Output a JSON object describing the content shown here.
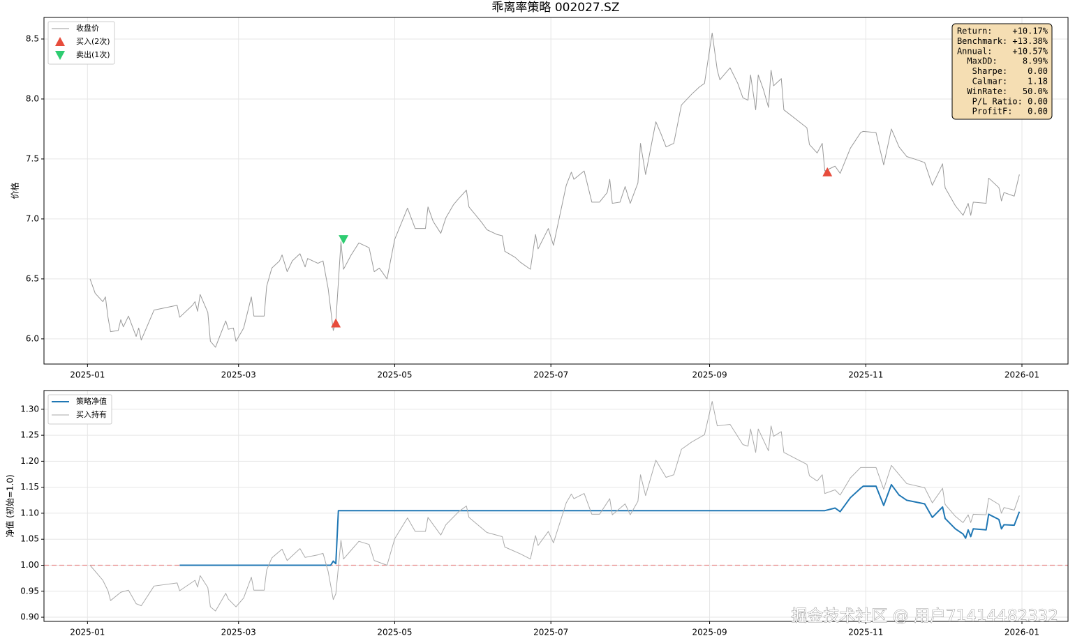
{
  "watermark": "掘金技术社区 @ 用户71414482332",
  "chart_data": [
    {
      "type": "line",
      "title": "乖离率策略  002027.SZ",
      "ylabel": "价格",
      "grid": true,
      "legend": "upper left",
      "xlim": [
        -17,
        383
      ],
      "ylim": [
        5.79,
        8.68
      ],
      "xticks": [
        {
          "value": 0,
          "label": "2025-01"
        },
        {
          "value": 59,
          "label": "2025-03"
        },
        {
          "value": 120,
          "label": "2025-05"
        },
        {
          "value": 181,
          "label": "2025-07"
        },
        {
          "value": 243,
          "label": "2025-09"
        },
        {
          "value": 304,
          "label": "2025-11"
        },
        {
          "value": 365,
          "label": "2026-01"
        }
      ],
      "yticks": [
        {
          "value": 6,
          "label": "6.0"
        },
        6.5,
        {
          "value": 7,
          "label": "7.0"
        },
        7.5,
        {
          "value": 8,
          "label": "8.0"
        },
        8.5
      ],
      "stats_box": [
        "Return:    +10.17%",
        "Benchmark: +13.38%",
        "Annual:    +10.57%",
        "MaxDD:     8.99%",
        "Sharpe:    0.00",
        "Calmar:    1.18",
        "WinRate:   50.0%",
        "P/L Ratio: 0.00",
        "ProfitF:   0.00"
      ],
      "series": [
        {
          "name": "收盘价",
          "color": "#999999",
          "linewidth": 1,
          "x": [
            1,
            3,
            6,
            7,
            8,
            9,
            12,
            13,
            14,
            16,
            19,
            20,
            21,
            26,
            35,
            36,
            41,
            42,
            43,
            44,
            47,
            48,
            50,
            54,
            55,
            57,
            58,
            61,
            64,
            65,
            69,
            70,
            72,
            75,
            76,
            78,
            80,
            83,
            85,
            86,
            90,
            92,
            94,
            96,
            97,
            99,
            100,
            103,
            106,
            110,
            112,
            114,
            117,
            120,
            125,
            128,
            132,
            133,
            135,
            138,
            140,
            143,
            145,
            148,
            149,
            154,
            156,
            160,
            162,
            163,
            167,
            169,
            173,
            175,
            176,
            180,
            182,
            187,
            189,
            190,
            194,
            197,
            200,
            203,
            204,
            205,
            208,
            210,
            212,
            215,
            216,
            218,
            222,
            224,
            226,
            229,
            232,
            236,
            239,
            241,
            244,
            246,
            247,
            251,
            254,
            256,
            258,
            259,
            261,
            262,
            264,
            266,
            267,
            268,
            271,
            272,
            281,
            282,
            285,
            287,
            288,
            292,
            294,
            298,
            302,
            303,
            308,
            311,
            314,
            317,
            320,
            323,
            327,
            330,
            334,
            335,
            339,
            342,
            344,
            345,
            346,
            351,
            352,
            356,
            357,
            358,
            362,
            364
          ],
          "values": [
            6.5,
            6.38,
            6.31,
            6.35,
            6.18,
            6.06,
            6.07,
            6.16,
            6.1,
            6.19,
            6.02,
            6.09,
            5.99,
            6.24,
            6.28,
            6.18,
            6.28,
            6.31,
            6.23,
            6.37,
            6.22,
            5.98,
            5.93,
            6.15,
            6.08,
            6.09,
            5.98,
            6.09,
            6.35,
            6.19,
            6.19,
            6.44,
            6.59,
            6.65,
            6.7,
            6.56,
            6.65,
            6.71,
            6.6,
            6.67,
            6.63,
            6.65,
            6.42,
            6.07,
            6.14,
            6.81,
            6.58,
            6.7,
            6.8,
            6.76,
            6.56,
            6.59,
            6.5,
            6.83,
            7.09,
            6.92,
            6.92,
            7.1,
            6.98,
            6.88,
            7.01,
            7.12,
            7.17,
            7.24,
            7.1,
            6.97,
            6.91,
            6.87,
            6.86,
            6.73,
            6.68,
            6.64,
            6.58,
            6.87,
            6.75,
            6.92,
            6.78,
            7.28,
            7.39,
            7.33,
            7.4,
            7.14,
            7.14,
            7.22,
            7.33,
            7.13,
            7.14,
            7.27,
            7.13,
            7.3,
            7.63,
            7.37,
            7.81,
            7.71,
            7.6,
            7.63,
            7.95,
            8.04,
            8.1,
            8.13,
            8.55,
            8.24,
            8.16,
            8.26,
            8.13,
            8.01,
            7.99,
            8.2,
            7.91,
            8.2,
            8.08,
            7.93,
            8.24,
            8.11,
            8.17,
            7.91,
            7.76,
            7.62,
            7.55,
            7.63,
            7.4,
            7.44,
            7.38,
            7.59,
            7.72,
            7.73,
            7.72,
            7.45,
            7.75,
            7.6,
            7.52,
            7.5,
            7.47,
            7.28,
            7.46,
            7.26,
            7.11,
            7.03,
            7.13,
            7.03,
            7.14,
            7.13,
            7.34,
            7.26,
            7.15,
            7.22,
            7.19,
            7.37
          ]
        },
        {
          "name": "买入(2次)",
          "marker": "triangle-up",
          "color": "#e74c3c",
          "x": [
            97,
            289
          ],
          "values": [
            6.13,
            7.39
          ]
        },
        {
          "name": "卖出(1次)",
          "marker": "triangle-down",
          "color": "#2ecc71",
          "x": [
            100
          ],
          "values": [
            6.83
          ]
        }
      ]
    },
    {
      "type": "line",
      "ylabel": "净值 (初始=1.0)",
      "grid": true,
      "legend": "upper left",
      "xlim": [
        -17,
        383
      ],
      "ylim": [
        0.892,
        1.336
      ],
      "reference_line": 1.0,
      "reference_color": "#e88a8a",
      "xticks": [
        {
          "value": 0,
          "label": "2025-01"
        },
        {
          "value": 59,
          "label": "2025-03"
        },
        {
          "value": 120,
          "label": "2025-05"
        },
        {
          "value": 181,
          "label": "2025-07"
        },
        {
          "value": 243,
          "label": "2025-09"
        },
        {
          "value": 304,
          "label": "2025-11"
        },
        {
          "value": 365,
          "label": "2026-01"
        }
      ],
      "yticks": [
        {
          "value": 0.9,
          "label": "0.90"
        },
        0.95,
        {
          "value": 1,
          "label": "1.00"
        },
        1.05,
        {
          "value": 1.1,
          "label": "1.10"
        },
        1.15,
        {
          "value": 1.2,
          "label": "1.20"
        },
        1.25,
        {
          "value": 1.3,
          "label": "1.30"
        }
      ],
      "series": [
        {
          "name": "策略净值",
          "color": "#1f77b4",
          "linewidth": 2,
          "x": [
            36,
            95,
            96,
            97,
            98,
            99,
            288,
            292,
            294,
            298,
            302,
            303,
            308,
            311,
            314,
            317,
            320,
            323,
            327,
            330,
            334,
            335,
            339,
            342,
            343,
            344,
            345,
            346,
            351,
            352,
            356,
            357,
            358,
            362,
            364
          ],
          "values": [
            1.0,
            1.0,
            1.008,
            1.003,
            1.105,
            1.105,
            1.105,
            1.11,
            1.103,
            1.13,
            1.148,
            1.152,
            1.152,
            1.115,
            1.155,
            1.135,
            1.125,
            1.122,
            1.118,
            1.092,
            1.112,
            1.09,
            1.07,
            1.06,
            1.052,
            1.068,
            1.055,
            1.07,
            1.068,
            1.098,
            1.088,
            1.07,
            1.078,
            1.077,
            1.103
          ]
        },
        {
          "name": "买入持有",
          "color": "#aaaaaa",
          "linewidth": 1,
          "x": [
            1,
            6,
            8,
            9,
            13,
            16,
            19,
            21,
            26,
            35,
            36,
            42,
            43,
            44,
            47,
            48,
            50,
            54,
            55,
            58,
            61,
            64,
            65,
            69,
            70,
            72,
            76,
            78,
            83,
            85,
            90,
            92,
            94,
            96,
            97,
            99,
            100,
            106,
            110,
            112,
            117,
            120,
            125,
            128,
            132,
            133,
            138,
            140,
            145,
            148,
            149,
            156,
            162,
            163,
            169,
            173,
            175,
            176,
            180,
            182,
            187,
            189,
            190,
            194,
            197,
            200,
            204,
            205,
            210,
            212,
            215,
            216,
            218,
            222,
            226,
            229,
            232,
            236,
            241,
            244,
            246,
            251,
            256,
            258,
            259,
            261,
            262,
            266,
            267,
            268,
            271,
            272,
            281,
            282,
            285,
            287,
            288,
            292,
            294,
            298,
            302,
            308,
            311,
            314,
            320,
            327,
            330,
            334,
            335,
            339,
            342,
            344,
            345,
            346,
            351,
            352,
            356,
            357,
            358,
            362,
            364
          ],
          "values": [
            1.0,
            0.971,
            0.951,
            0.932,
            0.948,
            0.952,
            0.926,
            0.922,
            0.96,
            0.966,
            0.951,
            0.971,
            0.958,
            0.98,
            0.957,
            0.92,
            0.912,
            0.946,
            0.935,
            0.92,
            0.937,
            0.977,
            0.952,
            0.952,
            0.991,
            1.014,
            1.031,
            1.009,
            1.032,
            1.015,
            1.02,
            1.023,
            0.988,
            0.934,
            0.945,
            1.048,
            1.012,
            1.046,
            1.04,
            1.009,
            1.0,
            1.051,
            1.091,
            1.065,
            1.065,
            1.092,
            1.058,
            1.078,
            1.103,
            1.114,
            1.092,
            1.063,
            1.055,
            1.035,
            1.022,
            1.012,
            1.057,
            1.038,
            1.065,
            1.043,
            1.12,
            1.137,
            1.128,
            1.138,
            1.098,
            1.098,
            1.128,
            1.097,
            1.118,
            1.097,
            1.123,
            1.174,
            1.134,
            1.202,
            1.169,
            1.174,
            1.223,
            1.237,
            1.251,
            1.315,
            1.268,
            1.271,
            1.232,
            1.229,
            1.262,
            1.217,
            1.262,
            1.22,
            1.268,
            1.248,
            1.257,
            1.217,
            1.194,
            1.172,
            1.162,
            1.174,
            1.138,
            1.145,
            1.135,
            1.168,
            1.188,
            1.188,
            1.146,
            1.192,
            1.157,
            1.149,
            1.12,
            1.148,
            1.117,
            1.094,
            1.082,
            1.097,
            1.082,
            1.098,
            1.097,
            1.129,
            1.117,
            1.1,
            1.111,
            1.106,
            1.134
          ]
        }
      ]
    }
  ]
}
